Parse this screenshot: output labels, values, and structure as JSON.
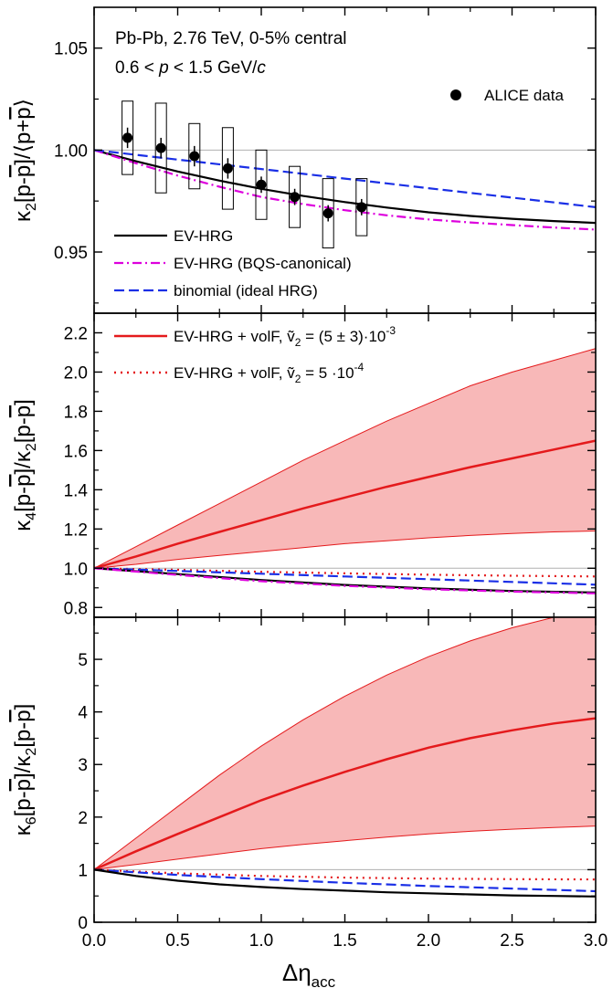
{
  "colors": {
    "ev_hrg": "#000000",
    "ev_hrg_bqs": "#dd00dd",
    "binomial": "#1a2fe6",
    "volf": "#e41a1c",
    "band": "#f8b8b8",
    "reference": "#b0b0b0",
    "axes": "#000000"
  },
  "x_axis": {
    "label_main": "Δη",
    "label_sub": "acc",
    "range": [
      0.0,
      3.0
    ],
    "ticks": [
      0.0,
      0.5,
      1.0,
      1.5,
      2.0,
      2.5,
      3.0
    ],
    "tick_labels": [
      "0.0",
      "0.5",
      "1.0",
      "1.5",
      "2.0",
      "2.5",
      "3.0"
    ]
  },
  "chart_data": [
    {
      "type": "line",
      "panel": "top",
      "ylabel": "κ2[p-p̄]/⟨p+p̄⟩",
      "ylim": [
        0.92,
        1.07
      ],
      "yticks": [
        0.95,
        1.0,
        1.05
      ],
      "ytick_labels": [
        "0.95",
        "1.00",
        "1.05"
      ],
      "reference_line": 1.0,
      "annotations": [
        "Pb-Pb, 2.76 TeV, 0-5% central",
        "0.6 < p < 1.5 GeV/c"
      ],
      "legend_placement": "bottom-left",
      "data_legend": "ALICE data",
      "data_points": {
        "x": [
          0.2,
          0.4,
          0.6,
          0.8,
          1.0,
          1.2,
          1.4,
          1.6
        ],
        "y": [
          1.006,
          1.001,
          0.997,
          0.991,
          0.983,
          0.977,
          0.969,
          0.972
        ],
        "stat_err": [
          0.005,
          0.005,
          0.005,
          0.005,
          0.004,
          0.004,
          0.004,
          0.004
        ],
        "sys_err": [
          0.018,
          0.022,
          0.016,
          0.02,
          0.017,
          0.015,
          0.017,
          0.014
        ]
      },
      "series": [
        {
          "key": "ev_hrg",
          "name": "EV-HRG",
          "style": "solid",
          "x": [
            0,
            0.25,
            0.5,
            0.75,
            1.0,
            1.25,
            1.5,
            1.75,
            2.0,
            2.25,
            2.5,
            2.75,
            3.0
          ],
          "y": [
            1.0,
            0.9945,
            0.9895,
            0.985,
            0.981,
            0.9775,
            0.9745,
            0.9718,
            0.9695,
            0.9677,
            0.9663,
            0.9652,
            0.9643
          ]
        },
        {
          "key": "ev_hrg_bqs",
          "name": "EV-HRG (BQS-canonical)",
          "style": "dashdot",
          "x": [
            0,
            0.25,
            0.5,
            0.75,
            1.0,
            1.25,
            1.5,
            1.75,
            2.0,
            2.25,
            2.5,
            2.75,
            3.0
          ],
          "y": [
            1.0,
            0.9935,
            0.9875,
            0.982,
            0.977,
            0.9735,
            0.9705,
            0.968,
            0.966,
            0.9645,
            0.9632,
            0.962,
            0.961
          ]
        },
        {
          "key": "binomial",
          "name": "binomial (ideal HRG)",
          "style": "dashed",
          "x": [
            0,
            0.5,
            1.0,
            1.5,
            2.0,
            2.5,
            3.0
          ],
          "y": [
            1.0,
            0.9953,
            0.9907,
            0.986,
            0.9813,
            0.9767,
            0.972
          ]
        }
      ]
    },
    {
      "type": "area",
      "panel": "middle",
      "ylabel": "κ4[p-p̄]/κ2[p-p̄]",
      "ylim": [
        0.75,
        2.3
      ],
      "yticks": [
        0.8,
        1.0,
        1.2,
        1.4,
        1.6,
        1.8,
        2.0,
        2.2
      ],
      "ytick_labels": [
        "0.8",
        "1.0",
        "1.2",
        "1.4",
        "1.6",
        "1.8",
        "2.0",
        "2.2"
      ],
      "reference_line": 1.0,
      "legend_placement": "top-left",
      "band": {
        "x": [
          0,
          0.25,
          0.5,
          0.75,
          1.0,
          1.25,
          1.5,
          1.75,
          2.0,
          2.25,
          2.5,
          2.75,
          3.0
        ],
        "lower": [
          1.0,
          1.02,
          1.045,
          1.065,
          1.085,
          1.105,
          1.125,
          1.14,
          1.155,
          1.167,
          1.177,
          1.185,
          1.19
        ],
        "upper": [
          1.0,
          1.11,
          1.22,
          1.33,
          1.44,
          1.55,
          1.65,
          1.75,
          1.84,
          1.93,
          2.0,
          2.06,
          2.12
        ]
      },
      "series": [
        {
          "key": "volf",
          "name": "EV-HRG + volF, ṽ2 = (5 ± 3)·10-3",
          "style": "solid",
          "x": [
            0,
            0.25,
            0.5,
            0.75,
            1.0,
            1.25,
            1.5,
            1.75,
            2.0,
            2.25,
            2.5,
            2.75,
            3.0
          ],
          "y": [
            1.0,
            1.06,
            1.125,
            1.185,
            1.245,
            1.305,
            1.36,
            1.415,
            1.465,
            1.515,
            1.56,
            1.605,
            1.65
          ]
        },
        {
          "key": "volf_dotted",
          "name": "EV-HRG + volF, ṽ2 = 5 ·10-4",
          "style": "dotted",
          "x": [
            0,
            0.5,
            1.0,
            1.5,
            2.0,
            2.5,
            3.0
          ],
          "y": [
            1.0,
            0.992,
            0.982,
            0.974,
            0.967,
            0.962,
            0.958
          ]
        },
        {
          "key": "binomial",
          "name": "binomial (ideal HRG)",
          "style": "dashed",
          "x": [
            0,
            0.5,
            1.0,
            1.5,
            2.0,
            2.5,
            3.0
          ],
          "y": [
            1.0,
            0.986,
            0.972,
            0.958,
            0.944,
            0.93,
            0.916
          ]
        },
        {
          "key": "ev_hrg",
          "name": "EV-HRG",
          "style": "solid",
          "x": [
            0,
            0.5,
            1.0,
            1.5,
            2.0,
            2.5,
            3.0
          ],
          "y": [
            1.0,
            0.97,
            0.94,
            0.915,
            0.897,
            0.884,
            0.876
          ]
        },
        {
          "key": "ev_hrg_bqs",
          "name": "EV-HRG (BQS-canonical)",
          "style": "dashdot",
          "x": [
            0,
            0.5,
            1.0,
            1.5,
            2.0,
            2.5,
            3.0
          ],
          "y": [
            1.0,
            0.966,
            0.934,
            0.91,
            0.893,
            0.881,
            0.872
          ]
        }
      ]
    },
    {
      "type": "area",
      "panel": "bottom",
      "ylabel": "κ6[p-p̄]/κ2[p-p̄]",
      "ylim": [
        0,
        5.8
      ],
      "yticks": [
        0,
        1,
        2,
        3,
        4,
        5
      ],
      "ytick_labels": [
        "0",
        "1",
        "2",
        "3",
        "4",
        "5"
      ],
      "reference_line": 1,
      "band": {
        "x": [
          0,
          0.25,
          0.5,
          0.75,
          1.0,
          1.25,
          1.5,
          1.75,
          2.0,
          2.25,
          2.5,
          2.75,
          3.0
        ],
        "lower": [
          1.0,
          1.1,
          1.2,
          1.3,
          1.4,
          1.48,
          1.55,
          1.62,
          1.68,
          1.73,
          1.77,
          1.8,
          1.83
        ],
        "upper": [
          1.0,
          1.6,
          2.2,
          2.8,
          3.35,
          3.85,
          4.3,
          4.7,
          5.05,
          5.35,
          5.6,
          5.8,
          5.8
        ]
      },
      "series": [
        {
          "key": "volf",
          "name": "EV-HRG + volF, ṽ2 = (5 ± 3)·10-3",
          "style": "solid",
          "x": [
            0,
            0.25,
            0.5,
            0.75,
            1.0,
            1.25,
            1.5,
            1.75,
            2.0,
            2.25,
            2.5,
            2.75,
            3.0
          ],
          "y": [
            1.0,
            1.35,
            1.68,
            2.0,
            2.32,
            2.6,
            2.86,
            3.1,
            3.32,
            3.5,
            3.65,
            3.78,
            3.88
          ]
        },
        {
          "key": "volf_dotted",
          "name": "EV-HRG + volF, ṽ2 = 5 ·10-4",
          "style": "dotted",
          "x": [
            0,
            0.5,
            1.0,
            1.5,
            2.0,
            2.5,
            3.0
          ],
          "y": [
            1.0,
            0.93,
            0.88,
            0.85,
            0.83,
            0.82,
            0.815
          ]
        },
        {
          "key": "binomial",
          "name": "binomial (ideal HRG)",
          "style": "dashed",
          "x": [
            0,
            0.5,
            1.0,
            1.5,
            2.0,
            2.5,
            3.0
          ],
          "y": [
            1.0,
            0.9,
            0.82,
            0.75,
            0.69,
            0.64,
            0.59
          ]
        },
        {
          "key": "ev_hrg",
          "name": "EV-HRG",
          "style": "solid",
          "x": [
            0,
            0.25,
            0.5,
            0.75,
            1.0,
            1.25,
            1.5,
            1.75,
            2.0,
            2.25,
            2.5,
            2.75,
            3.0
          ],
          "y": [
            1.0,
            0.88,
            0.79,
            0.72,
            0.67,
            0.63,
            0.6,
            0.57,
            0.55,
            0.53,
            0.51,
            0.5,
            0.49
          ]
        }
      ]
    }
  ],
  "legend_top": [
    {
      "key": "ev_hrg",
      "style": "solid",
      "text": "EV-HRG"
    },
    {
      "key": "ev_hrg_bqs",
      "style": "dashdot",
      "text": "EV-HRG (BQS-canonical)"
    },
    {
      "key": "binomial",
      "style": "dashed",
      "text": "binomial (ideal HRG)"
    }
  ],
  "legend_middle": [
    {
      "key": "volf",
      "style": "solid",
      "prefix": "EV-HRG + volF, ",
      "vsym": "ṽ",
      "vsub": "2",
      "value": " = (5 ± 3)·10",
      "exp": "-3"
    },
    {
      "key": "volf_dotted",
      "style": "dotted",
      "prefix": "EV-HRG + volF, ",
      "vsym": "ṽ",
      "vsub": "2",
      "value": " = 5 ·10",
      "exp": "-4"
    }
  ],
  "ylabel_parts": {
    "top": {
      "kappa": "κ",
      "sub": "2",
      "mid": "[p-",
      "pbar": "p",
      "close": "]/⟨p+",
      "end": "⟩"
    },
    "middle": {
      "kappa": "κ",
      "sub": "4",
      "mid": "[p-",
      "pbar": "p",
      "close": "]/κ",
      "sub2": "2",
      "mid2": "[p-",
      "end": "]"
    },
    "bottom": {
      "kappa": "κ",
      "sub": "6",
      "mid": "[p-",
      "pbar": "p",
      "close": "]/κ",
      "sub2": "2",
      "mid2": "[p-",
      "end": "]"
    }
  }
}
